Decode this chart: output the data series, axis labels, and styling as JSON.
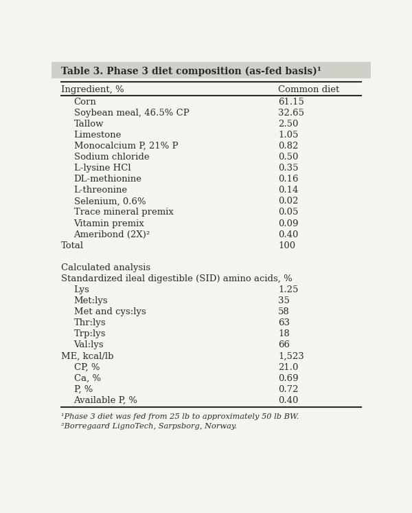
{
  "title": "Table 3. Phase 3 diet composition (as-fed basis)¹",
  "col_header_left": "Ingredient, %",
  "col_header_right": "Common diet",
  "rows": [
    {
      "label": "Corn",
      "value": "61.15",
      "indent": true
    },
    {
      "label": "Soybean meal, 46.5% CP",
      "value": "32.65",
      "indent": true
    },
    {
      "label": "Tallow",
      "value": "2.50",
      "indent": true
    },
    {
      "label": "Limestone",
      "value": "1.05",
      "indent": true
    },
    {
      "label": "Monocalcium P, 21% P",
      "value": "0.82",
      "indent": true
    },
    {
      "label": "Sodium chloride",
      "value": "0.50",
      "indent": true
    },
    {
      "label": "L-lysine HCl",
      "value": "0.35",
      "indent": true
    },
    {
      "label": "DL-methionine",
      "value": "0.16",
      "indent": true
    },
    {
      "label": "L-threonine",
      "value": "0.14",
      "indent": true
    },
    {
      "label": "Selenium, 0.6%",
      "value": "0.02",
      "indent": true
    },
    {
      "label": "Trace mineral premix",
      "value": "0.05",
      "indent": true
    },
    {
      "label": "Vitamin premix",
      "value": "0.09",
      "indent": true
    },
    {
      "label": "Ameribond (2X)²",
      "value": "0.40",
      "indent": true
    },
    {
      "label": "Total",
      "value": "100",
      "indent": false
    },
    {
      "label": "",
      "value": "",
      "indent": false
    },
    {
      "label": "Calculated analysis",
      "value": "",
      "indent": false
    },
    {
      "label": "Standardized ileal digestible (SID) amino acids, %",
      "value": "",
      "indent": false
    },
    {
      "label": "Lys",
      "value": "1.25",
      "indent": true
    },
    {
      "label": "Met:lys",
      "value": "35",
      "indent": true
    },
    {
      "label": "Met and cys:lys",
      "value": "58",
      "indent": true
    },
    {
      "label": "Thr:lys",
      "value": "63",
      "indent": true
    },
    {
      "label": "Trp:lys",
      "value": "18",
      "indent": true
    },
    {
      "label": "Val:lys",
      "value": "66",
      "indent": true
    },
    {
      "label": "ME, kcal/lb",
      "value": "1,523",
      "indent": false
    },
    {
      "label": "CP, %",
      "value": "21.0",
      "indent": true
    },
    {
      "label": "Ca, %",
      "value": "0.69",
      "indent": true
    },
    {
      "label": "P, %",
      "value": "0.72",
      "indent": true
    },
    {
      "label": "Available P, %",
      "value": "0.40",
      "indent": true
    }
  ],
  "footnotes": [
    "¹Phase 3 diet was fed from 25 lb to approximately 50 lb BW.",
    "²Borregaard LignoTech, Sarpsborg, Norway."
  ],
  "bg_color": "#f5f5f0",
  "text_color": "#2b2b2b",
  "title_bg": "#d0d0c8",
  "font_size": 9.5,
  "footnote_font_size": 8.2
}
